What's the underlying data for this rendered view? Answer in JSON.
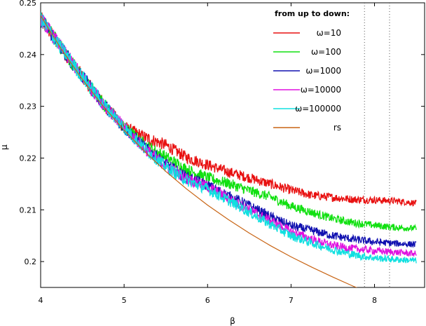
{
  "chart_data": {
    "type": "line",
    "title": "",
    "xlabel": "β",
    "ylabel": "μ",
    "xlim": [
      4,
      8.6
    ],
    "ylim": [
      0.195,
      0.25
    ],
    "xticks": [
      4,
      5,
      6,
      7,
      8
    ],
    "yticks": [
      0.2,
      0.21,
      0.22,
      0.23,
      0.24,
      0.25
    ],
    "ytick_labels": [
      "0.2",
      "0.21",
      "0.22",
      "0.23",
      "0.24",
      "0.25"
    ],
    "legend_title": "from up to down:",
    "legend_position": "top-right",
    "grid": false,
    "vlines": [
      7.88,
      8.18
    ],
    "series": [
      {
        "name": "ω=10",
        "color": "#e81010",
        "noisy": true,
        "x": [
          4.0,
          4.25,
          4.5,
          4.75,
          5.0,
          5.25,
          5.5,
          5.75,
          6.0,
          6.25,
          6.5,
          6.75,
          7.0,
          7.25,
          7.5,
          7.75,
          8.0,
          8.25,
          8.5
        ],
        "y": [
          0.247,
          0.2412,
          0.2357,
          0.2305,
          0.2259,
          0.224,
          0.2225,
          0.2201,
          0.2187,
          0.2173,
          0.2162,
          0.215,
          0.2138,
          0.2128,
          0.2124,
          0.212,
          0.2119,
          0.2117,
          0.2113
        ]
      },
      {
        "name": "ω=100",
        "color": "#10e010",
        "noisy": true,
        "x": [
          4.0,
          4.25,
          4.5,
          4.75,
          5.0,
          5.25,
          5.5,
          5.75,
          6.0,
          6.25,
          6.5,
          6.75,
          7.0,
          7.25,
          7.5,
          7.75,
          8.0,
          8.25,
          8.5
        ],
        "y": [
          0.247,
          0.2412,
          0.2357,
          0.2305,
          0.2259,
          0.2225,
          0.2202,
          0.2178,
          0.2162,
          0.2151,
          0.2137,
          0.2125,
          0.2107,
          0.2095,
          0.2083,
          0.2075,
          0.207,
          0.2066,
          0.2064
        ]
      },
      {
        "name": "ω=1000",
        "color": "#1010b0",
        "noisy": true,
        "x": [
          4.0,
          4.25,
          4.5,
          4.75,
          5.0,
          5.25,
          5.5,
          5.75,
          6.0,
          6.25,
          6.5,
          6.75,
          7.0,
          7.25,
          7.5,
          7.75,
          8.0,
          8.25,
          8.5
        ],
        "y": [
          0.247,
          0.2412,
          0.2357,
          0.2305,
          0.2259,
          0.222,
          0.2188,
          0.2163,
          0.2147,
          0.2127,
          0.2108,
          0.2087,
          0.2069,
          0.206,
          0.205,
          0.2043,
          0.2038,
          0.2035,
          0.2033
        ]
      },
      {
        "name": "ω=10000",
        "color": "#e010e0",
        "noisy": true,
        "x": [
          4.0,
          4.25,
          4.5,
          4.75,
          5.0,
          5.25,
          5.5,
          5.75,
          6.0,
          6.25,
          6.5,
          6.75,
          7.0,
          7.25,
          7.5,
          7.75,
          8.0,
          8.25,
          8.5
        ],
        "y": [
          0.247,
          0.2412,
          0.2357,
          0.2305,
          0.2259,
          0.2218,
          0.2185,
          0.216,
          0.2145,
          0.2122,
          0.21,
          0.2079,
          0.2058,
          0.2043,
          0.2031,
          0.2025,
          0.2021,
          0.2018,
          0.2015
        ]
      },
      {
        "name": "ω=100000",
        "color": "#10e0e0",
        "noisy": true,
        "x": [
          4.0,
          4.25,
          4.5,
          4.75,
          5.0,
          5.25,
          5.5,
          5.75,
          6.0,
          6.25,
          6.5,
          6.75,
          7.0,
          7.25,
          7.5,
          7.75,
          8.0,
          8.25,
          8.5
        ],
        "y": [
          0.247,
          0.2412,
          0.2357,
          0.2305,
          0.2259,
          0.2218,
          0.2183,
          0.2157,
          0.214,
          0.2118,
          0.2095,
          0.2072,
          0.205,
          0.2036,
          0.2023,
          0.2013,
          0.2007,
          0.2004,
          0.2002
        ]
      },
      {
        "name": "rs",
        "color": "#c86414",
        "noisy": false,
        "x": [
          4.0,
          4.25,
          4.5,
          4.75,
          5.0,
          5.25,
          5.5,
          5.75,
          6.0,
          6.25,
          6.5,
          6.75,
          7.0,
          7.25,
          7.5,
          7.75,
          8.0,
          8.25
        ],
        "y": [
          0.2475,
          0.241,
          0.2352,
          0.23,
          0.2254,
          0.2212,
          0.2174,
          0.214,
          0.2109,
          0.2081,
          0.2055,
          0.2031,
          0.2009,
          0.1989,
          0.197,
          0.1952,
          0.1936,
          0.192
        ]
      }
    ]
  }
}
